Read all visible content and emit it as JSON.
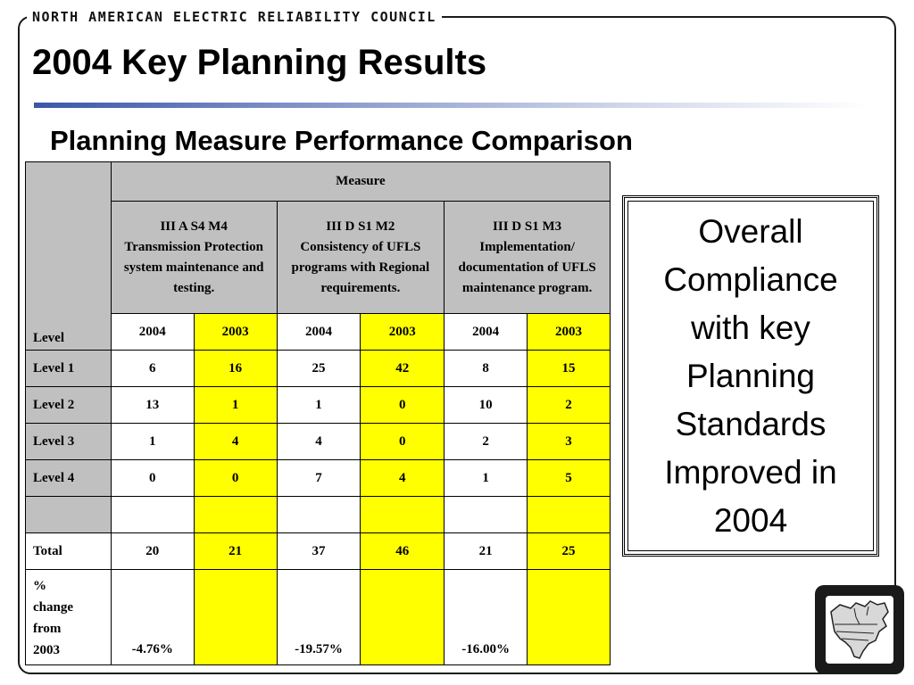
{
  "header": {
    "org_name": "NORTH AMERICAN ELECTRIC RELIABILITY COUNCIL"
  },
  "title": "2004 Key Planning Results",
  "subtitle": "Planning Measure Performance Comparison",
  "table": {
    "measure_header": "Measure",
    "level_header": "Level",
    "measures": [
      {
        "code": "III A S4 M4",
        "description": "Transmission Protection system maintenance and testing."
      },
      {
        "code": "III D S1 M2",
        "description": "Consistency of UFLS programs with Regional requirements."
      },
      {
        "code": "III D S1 M3",
        "description": "Implementation/ documentation of UFLS maintenance program."
      }
    ],
    "years": [
      "2004",
      "2003",
      "2004",
      "2003",
      "2004",
      "2003"
    ],
    "rows": [
      {
        "label": "Level 1",
        "values": [
          "6",
          "16",
          "25",
          "42",
          "8",
          "15"
        ]
      },
      {
        "label": "Level 2",
        "values": [
          "13",
          "1",
          "1",
          "0",
          "10",
          "2"
        ]
      },
      {
        "label": "Level 3",
        "values": [
          "1",
          "4",
          "4",
          "0",
          "2",
          "3"
        ]
      },
      {
        "label": "Level 4",
        "values": [
          "0",
          "0",
          "7",
          "4",
          "1",
          "5"
        ]
      }
    ],
    "total": {
      "label": "Total",
      "values": [
        "20",
        "21",
        "37",
        "46",
        "21",
        "25"
      ]
    },
    "pct_change": {
      "label_lines": [
        "%",
        "change",
        "from",
        "2003"
      ],
      "values": [
        "-4.76%",
        "",
        "-19.57%",
        "",
        "-16.00%",
        ""
      ]
    }
  },
  "callout": {
    "text": "Overall Compliance with key Planning Standards Improved in 2004"
  },
  "colors": {
    "header_gray": "#c0c0c0",
    "highlight_yellow": "#ffff00",
    "title_rule_blue": "#3a57a8"
  },
  "logo": {
    "icon": "nerc-north-america-map-icon"
  }
}
